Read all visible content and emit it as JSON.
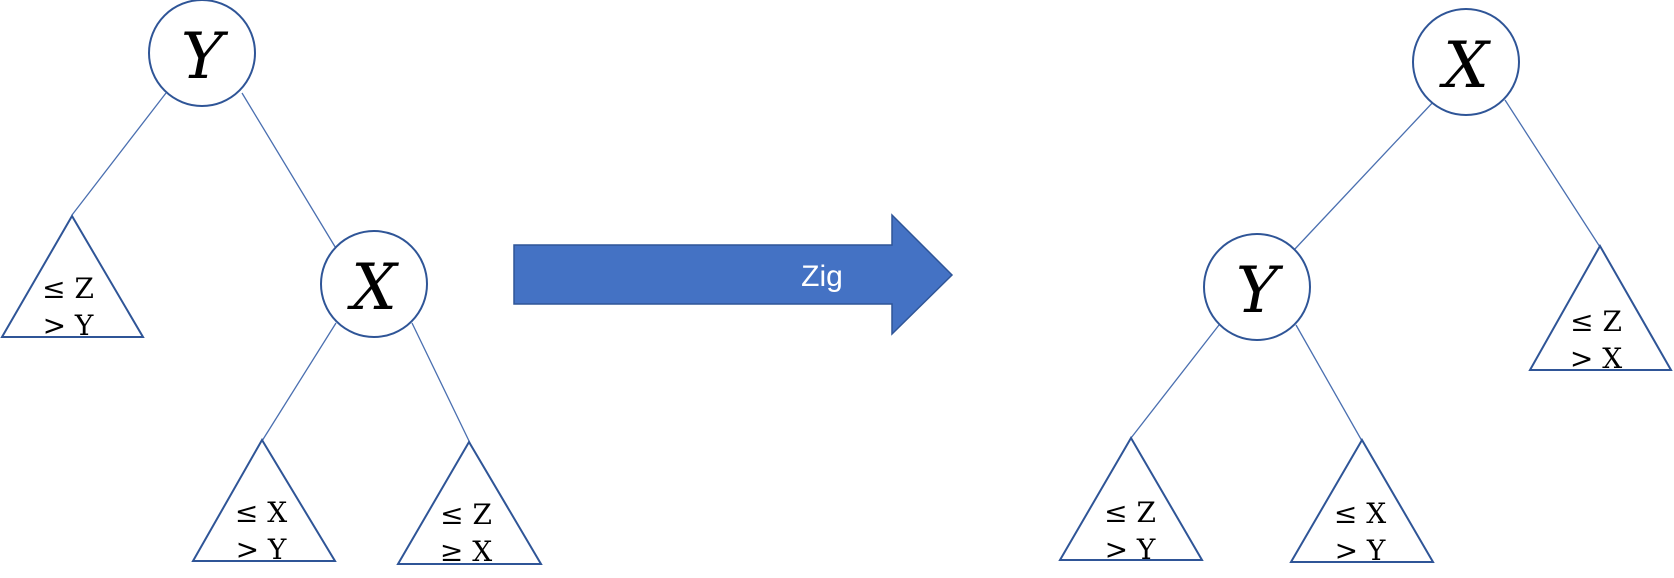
{
  "left_tree": {
    "root": "Y",
    "child": "X",
    "subtree_a": {
      "line1": "≤ Z",
      "line2": "> Y"
    },
    "subtree_b": {
      "line1": "≤ X",
      "line2": "> Y"
    },
    "subtree_c": {
      "line1": "≤ Z",
      "line2": "≥ X"
    }
  },
  "arrow": {
    "label": "Zig",
    "color": "#4472c4"
  },
  "right_tree": {
    "root": "X",
    "child": "Y",
    "subtree_a": {
      "line1": "≤ Z",
      "line2": "> Y"
    },
    "subtree_b": {
      "line1": "≤ X",
      "line2": "> Y"
    },
    "subtree_c": {
      "line1": "≤ Z",
      "line2": "> X"
    }
  },
  "colors": {
    "stroke": "#2f5597",
    "edge": "#4a6fb0"
  }
}
